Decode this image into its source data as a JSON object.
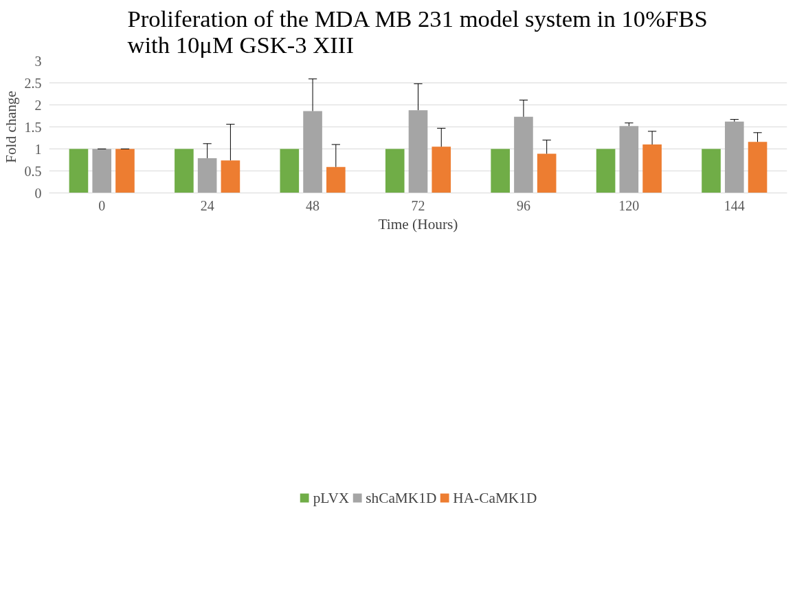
{
  "chart_data": {
    "type": "bar",
    "title": "Proliferation of the MDA MB 231 model system in 10%FBS\nwith 10μM GSK-3 XIII",
    "xlabel": "Time (Hours)",
    "ylabel": "Fold change",
    "categories": [
      "0",
      "24",
      "48",
      "72",
      "96",
      "120",
      "144"
    ],
    "series": [
      {
        "name": "pLVX",
        "color": "#70ad47",
        "values": [
          1,
          1,
          1,
          1,
          1,
          1,
          1
        ]
      },
      {
        "name": "shCaMK1D",
        "color": "#a5a5a5",
        "values": [
          1,
          0.79,
          1.86,
          1.88,
          1.73,
          1.52,
          1.62
        ],
        "errors": [
          [
            1,
            1
          ],
          [
            0.79,
            1.12
          ],
          [
            1.86,
            2.59
          ],
          [
            1.88,
            2.48
          ],
          [
            1.73,
            2.11
          ],
          [
            1.52,
            1.59
          ],
          [
            1.62,
            1.67
          ]
        ]
      },
      {
        "name": "HA-CaMK1D",
        "color": "#ed7d31",
        "values": [
          1,
          0.74,
          0.59,
          1.05,
          0.89,
          1.1,
          1.16
        ],
        "errors": [
          [
            1,
            1
          ],
          [
            0.74,
            1.56
          ],
          [
            0.59,
            1.1
          ],
          [
            1.05,
            1.47
          ],
          [
            0.89,
            1.2
          ],
          [
            1.1,
            1.4
          ],
          [
            1.16,
            1.37
          ]
        ]
      }
    ],
    "ylim": [
      0,
      3
    ],
    "yticks": [
      0,
      0.5,
      1,
      1.5,
      2,
      2.5,
      3
    ],
    "grid": "y",
    "legend": "bottom"
  }
}
